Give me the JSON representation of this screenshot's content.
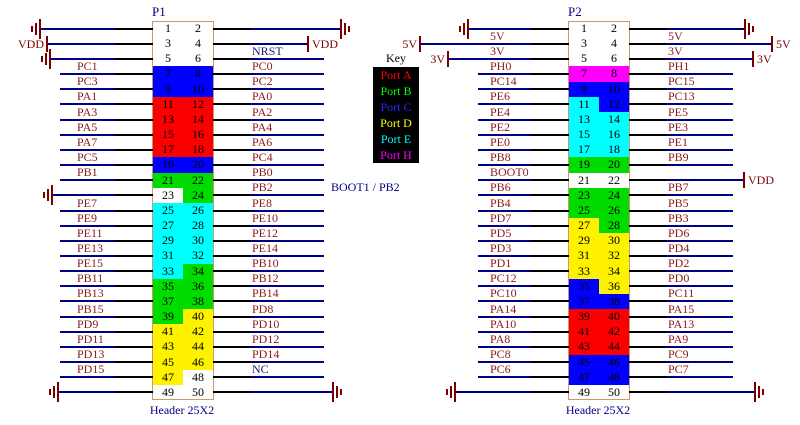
{
  "key": {
    "title": "Key",
    "entries": [
      {
        "label": "Port A",
        "color": "#ff0000"
      },
      {
        "label": "Port B",
        "color": "#00ff00"
      },
      {
        "label": "Port C",
        "color": "#2828ff"
      },
      {
        "label": "Port D",
        "color": "#ffff00"
      },
      {
        "label": "Port E",
        "color": "#00ffff"
      },
      {
        "label": "Port H",
        "color": "#ff00ff"
      }
    ]
  },
  "annotations": {
    "boot_note": "BOOT1 / PB2"
  },
  "power_labels": {
    "vdd": "VDD",
    "5v": "5V",
    "3v": "3V"
  },
  "port_colors": {
    "A": "#fa0000",
    "B": "#00dc00",
    "C": "#0000ff",
    "D": "#fff200",
    "E": "#00ffff",
    "H": "#ff00ff"
  },
  "p1": {
    "title": "P1",
    "caption": "Header 25X2",
    "rows": [
      {
        "pins": [
          1,
          2
        ],
        "left": {
          "conn": "gnd"
        },
        "right": {
          "conn": "gnd"
        }
      },
      {
        "pins": [
          3,
          4
        ],
        "left": {
          "conn": "vdd"
        },
        "right": {
          "conn": "vdd"
        }
      },
      {
        "pins": [
          5,
          6
        ],
        "left": {
          "conn": "gnd"
        },
        "right": {
          "label": "NRST"
        }
      },
      {
        "pins": [
          7,
          8
        ],
        "left": {
          "label": "PC1",
          "port": "C"
        },
        "right": {
          "label": "PC0",
          "port": "C"
        }
      },
      {
        "pins": [
          9,
          10
        ],
        "left": {
          "label": "PC3",
          "port": "C"
        },
        "right": {
          "label": "PC2",
          "port": "C"
        }
      },
      {
        "pins": [
          11,
          12
        ],
        "left": {
          "label": "PA1",
          "port": "A"
        },
        "right": {
          "label": "PA0",
          "port": "A"
        }
      },
      {
        "pins": [
          13,
          14
        ],
        "left": {
          "label": "PA3",
          "port": "A"
        },
        "right": {
          "label": "PA2",
          "port": "A"
        }
      },
      {
        "pins": [
          15,
          16
        ],
        "left": {
          "label": "PA5",
          "port": "A"
        },
        "right": {
          "label": "PA4",
          "port": "A"
        }
      },
      {
        "pins": [
          17,
          18
        ],
        "left": {
          "label": "PA7",
          "port": "A"
        },
        "right": {
          "label": "PA6",
          "port": "A"
        }
      },
      {
        "pins": [
          19,
          20
        ],
        "left": {
          "label": "PC5",
          "port": "C"
        },
        "right": {
          "label": "PC4",
          "port": "C"
        }
      },
      {
        "pins": [
          21,
          22
        ],
        "left": {
          "label": "PB1",
          "port": "B"
        },
        "right": {
          "label": "PB0",
          "port": "B"
        }
      },
      {
        "pins": [
          23,
          24
        ],
        "left": {
          "conn": "gnd"
        },
        "right": {
          "label": "PB2",
          "port": "B"
        }
      },
      {
        "pins": [
          25,
          26
        ],
        "left": {
          "label": "PE7",
          "port": "E"
        },
        "right": {
          "label": "PE8",
          "port": "E"
        }
      },
      {
        "pins": [
          27,
          28
        ],
        "left": {
          "label": "PE9",
          "port": "E"
        },
        "right": {
          "label": "PE10",
          "port": "E"
        }
      },
      {
        "pins": [
          29,
          30
        ],
        "left": {
          "label": "PE11",
          "port": "E"
        },
        "right": {
          "label": "PE12",
          "port": "E"
        }
      },
      {
        "pins": [
          31,
          32
        ],
        "left": {
          "label": "PE13",
          "port": "E"
        },
        "right": {
          "label": "PE14",
          "port": "E"
        }
      },
      {
        "pins": [
          33,
          34
        ],
        "left": {
          "label": "PE15",
          "port": "E"
        },
        "right": {
          "label": "PB10",
          "port": "B"
        }
      },
      {
        "pins": [
          35,
          36
        ],
        "left": {
          "label": "PB11",
          "port": "B"
        },
        "right": {
          "label": "PB12",
          "port": "B"
        }
      },
      {
        "pins": [
          37,
          38
        ],
        "left": {
          "label": "PB13",
          "port": "B"
        },
        "right": {
          "label": "PB14",
          "port": "B"
        }
      },
      {
        "pins": [
          39,
          40
        ],
        "left": {
          "label": "PB15",
          "port": "B"
        },
        "right": {
          "label": "PD8",
          "port": "D"
        }
      },
      {
        "pins": [
          41,
          42
        ],
        "left": {
          "label": "PD9",
          "port": "D"
        },
        "right": {
          "label": "PD10",
          "port": "D"
        }
      },
      {
        "pins": [
          43,
          44
        ],
        "left": {
          "label": "PD11",
          "port": "D"
        },
        "right": {
          "label": "PD12",
          "port": "D"
        }
      },
      {
        "pins": [
          45,
          46
        ],
        "left": {
          "label": "PD13",
          "port": "D"
        },
        "right": {
          "label": "PD14",
          "port": "D"
        }
      },
      {
        "pins": [
          47,
          48
        ],
        "left": {
          "label": "PD15",
          "port": "D"
        },
        "right": {
          "label": "NC"
        }
      },
      {
        "pins": [
          49,
          50
        ],
        "left": {
          "conn": "gnd"
        },
        "right": {
          "conn": "gnd"
        }
      }
    ]
  },
  "p2": {
    "title": "P2",
    "caption": "Header 25X2",
    "rows": [
      {
        "pins": [
          1,
          2
        ],
        "left": {
          "conn": "gnd"
        },
        "right": {
          "conn": "gnd"
        }
      },
      {
        "pins": [
          3,
          4
        ],
        "left": {
          "label": "5V",
          "conn": "5v"
        },
        "right": {
          "label": "5V",
          "conn": "5v"
        }
      },
      {
        "pins": [
          5,
          6
        ],
        "left": {
          "label": "3V",
          "conn": "3v"
        },
        "right": {
          "label": "3V",
          "conn": "3v"
        }
      },
      {
        "pins": [
          7,
          8
        ],
        "left": {
          "label": "PH0",
          "port": "H"
        },
        "right": {
          "label": "PH1",
          "port": "H"
        }
      },
      {
        "pins": [
          9,
          10
        ],
        "left": {
          "label": "PC14",
          "port": "C"
        },
        "right": {
          "label": "PC15",
          "port": "C"
        }
      },
      {
        "pins": [
          11,
          12
        ],
        "left": {
          "label": "PE6",
          "port": "E"
        },
        "right": {
          "label": "PC13",
          "port": "C"
        }
      },
      {
        "pins": [
          13,
          14
        ],
        "left": {
          "label": "PE4",
          "port": "E"
        },
        "right": {
          "label": "PE5",
          "port": "E"
        }
      },
      {
        "pins": [
          15,
          16
        ],
        "left": {
          "label": "PE2",
          "port": "E"
        },
        "right": {
          "label": "PE3",
          "port": "E"
        }
      },
      {
        "pins": [
          17,
          18
        ],
        "left": {
          "label": "PE0",
          "port": "E"
        },
        "right": {
          "label": "PE1",
          "port": "E"
        }
      },
      {
        "pins": [
          19,
          20
        ],
        "left": {
          "label": "PB8",
          "port": "B"
        },
        "right": {
          "label": "PB9",
          "port": "B"
        }
      },
      {
        "pins": [
          21,
          22
        ],
        "left": {
          "label": "BOOT0"
        },
        "right": {
          "conn": "vdd"
        }
      },
      {
        "pins": [
          23,
          24
        ],
        "left": {
          "label": "PB6",
          "port": "B"
        },
        "right": {
          "label": "PB7",
          "port": "B"
        }
      },
      {
        "pins": [
          25,
          26
        ],
        "left": {
          "label": "PB4",
          "port": "B"
        },
        "right": {
          "label": "PB5",
          "port": "B"
        }
      },
      {
        "pins": [
          27,
          28
        ],
        "left": {
          "label": "PD7",
          "port": "D"
        },
        "right": {
          "label": "PB3",
          "port": "B"
        }
      },
      {
        "pins": [
          29,
          30
        ],
        "left": {
          "label": "PD5",
          "port": "D"
        },
        "right": {
          "label": "PD6",
          "port": "D"
        }
      },
      {
        "pins": [
          31,
          32
        ],
        "left": {
          "label": "PD3",
          "port": "D"
        },
        "right": {
          "label": "PD4",
          "port": "D"
        }
      },
      {
        "pins": [
          33,
          34
        ],
        "left": {
          "label": "PD1",
          "port": "D"
        },
        "right": {
          "label": "PD2",
          "port": "D"
        }
      },
      {
        "pins": [
          35,
          36
        ],
        "left": {
          "label": "PC12",
          "port": "C"
        },
        "right": {
          "label": "PD0",
          "port": "D"
        }
      },
      {
        "pins": [
          37,
          38
        ],
        "left": {
          "label": "PC10",
          "port": "C"
        },
        "right": {
          "label": "PC11",
          "port": "C"
        }
      },
      {
        "pins": [
          39,
          40
        ],
        "left": {
          "label": "PA14",
          "port": "A"
        },
        "right": {
          "label": "PA15",
          "port": "A"
        }
      },
      {
        "pins": [
          41,
          42
        ],
        "left": {
          "label": "PA10",
          "port": "A"
        },
        "right": {
          "label": "PA13",
          "port": "A"
        }
      },
      {
        "pins": [
          43,
          44
        ],
        "left": {
          "label": "PA8",
          "port": "A"
        },
        "right": {
          "label": "PA9",
          "port": "A"
        }
      },
      {
        "pins": [
          45,
          46
        ],
        "left": {
          "label": "PC8",
          "port": "C"
        },
        "right": {
          "label": "PC9",
          "port": "C"
        }
      },
      {
        "pins": [
          47,
          48
        ],
        "left": {
          "label": "PC6",
          "port": "C"
        },
        "right": {
          "label": "PC7",
          "port": "C"
        }
      },
      {
        "pins": [
          49,
          50
        ],
        "left": {
          "conn": "gnd"
        },
        "right": {
          "conn": "gnd"
        }
      }
    ]
  }
}
